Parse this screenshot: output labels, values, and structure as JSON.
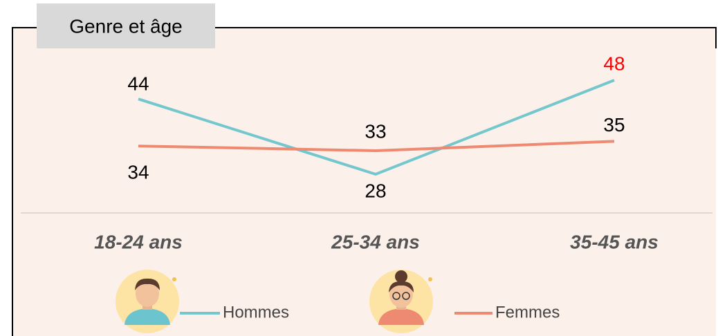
{
  "chart_data": {
    "type": "line",
    "title": "Genre et âge",
    "categories": [
      "18-24 ans",
      "25-34 ans",
      "35-45 ans"
    ],
    "series": [
      {
        "name": "Hommes",
        "color": "#74c7cd",
        "values": [
          44,
          28,
          48
        ],
        "label_colors": [
          "#000000",
          "#000000",
          "#ff0000"
        ]
      },
      {
        "name": "Femmes",
        "color": "#ef8a72",
        "values": [
          34,
          33,
          35
        ],
        "label_colors": [
          "#000000",
          "#000000",
          "#000000"
        ]
      }
    ],
    "grid": false
  }
}
